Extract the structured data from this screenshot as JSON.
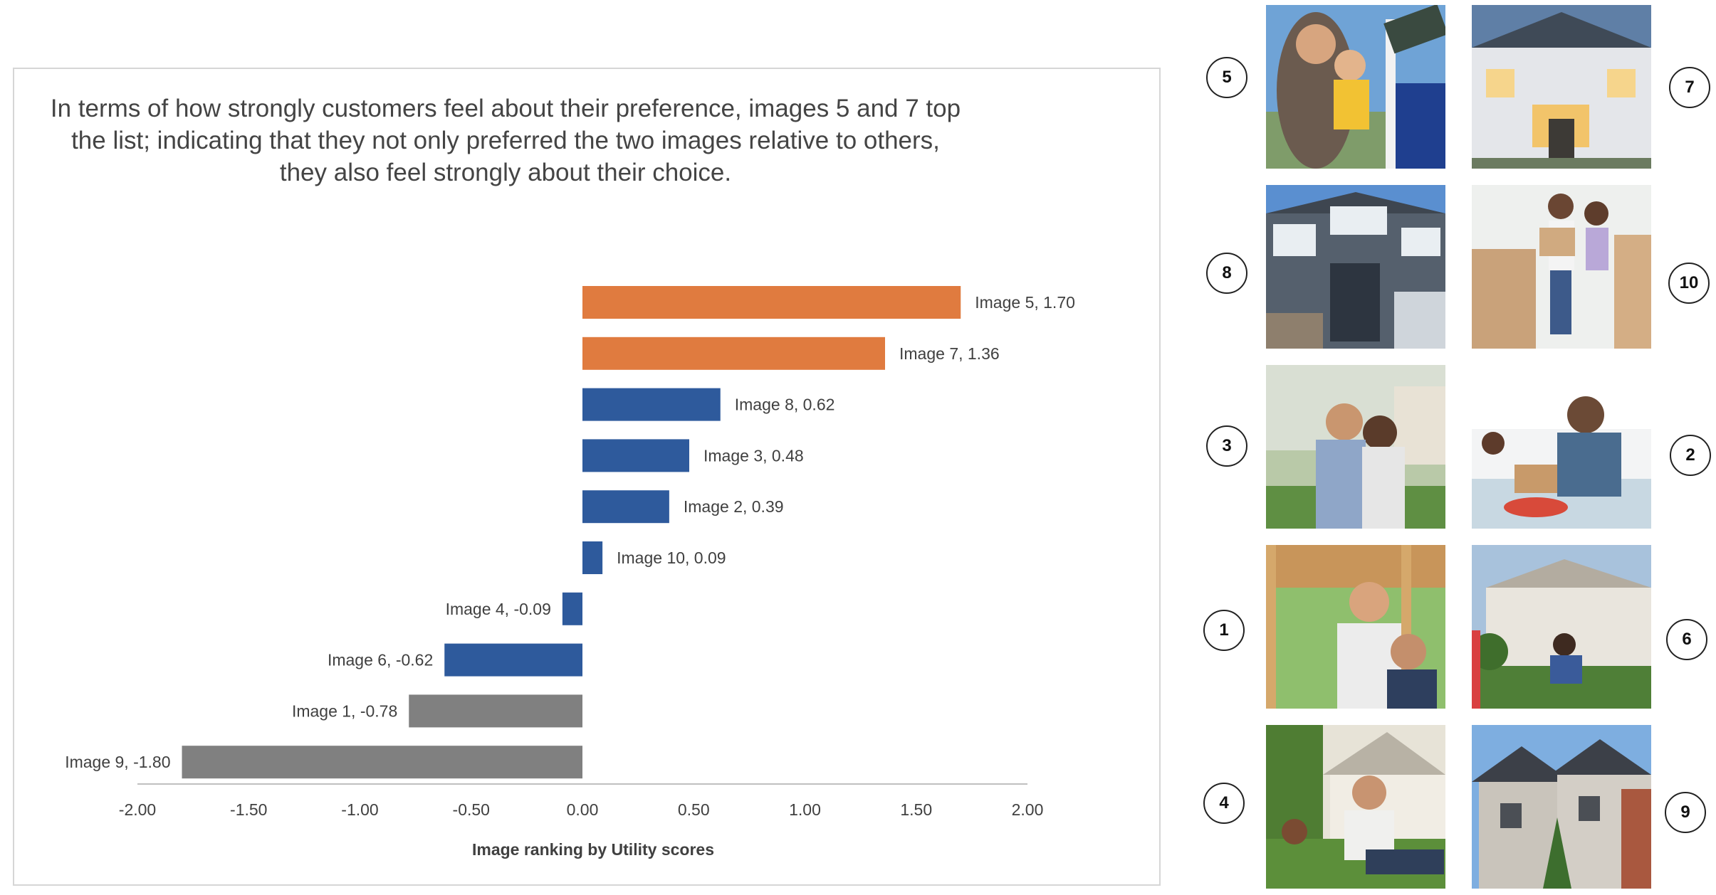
{
  "headline": [
    "In terms of how strongly customers feel about their preference, images 5 and 7 top",
    "the list; indicating that they not only preferred the two images relative to others,",
    "they also feel strongly about their choice."
  ],
  "colors": {
    "top": "#E07B3F",
    "positive": "#2E5A9C",
    "negative_blue": "#2E5A9C",
    "low": "#808080",
    "axis": "#BFBFBF"
  },
  "chart_data": {
    "type": "bar",
    "orientation": "horizontal",
    "title": "",
    "xlabel": "Image ranking by Utility scores",
    "ylabel": "",
    "xlim": [
      -2.0,
      2.0
    ],
    "xticks": [
      "-2.00",
      "-1.50",
      "-1.00",
      "-0.50",
      "0.00",
      "0.50",
      "1.00",
      "1.50",
      "2.00"
    ],
    "grid": false,
    "bars": [
      {
        "label": "Image 5, 1.70",
        "value": 1.7,
        "group": "top"
      },
      {
        "label": "Image 7, 1.36",
        "value": 1.36,
        "group": "top"
      },
      {
        "label": "Image 8, 0.62",
        "value": 0.62,
        "group": "positive"
      },
      {
        "label": "Image 3, 0.48",
        "value": 0.48,
        "group": "positive"
      },
      {
        "label": "Image 2, 0.39",
        "value": 0.39,
        "group": "positive"
      },
      {
        "label": "Image 10, 0.09",
        "value": 0.09,
        "group": "positive"
      },
      {
        "label": "Image 4, -0.09",
        "value": -0.09,
        "group": "negative_blue"
      },
      {
        "label": "Image 6, -0.62",
        "value": -0.62,
        "group": "negative_blue"
      },
      {
        "label": "Image 1, -0.78",
        "value": -0.78,
        "group": "low"
      },
      {
        "label": "Image 9, -1.80",
        "value": -1.8,
        "group": "low"
      }
    ]
  },
  "images": [
    {
      "number": "5",
      "scene": "family-sold-sign"
    },
    {
      "number": "7",
      "scene": "white-house-dusk"
    },
    {
      "number": "8",
      "scene": "gray-house"
    },
    {
      "number": "10",
      "scene": "family-moving-boxes"
    },
    {
      "number": "3",
      "scene": "couple-embrace"
    },
    {
      "number": "2",
      "scene": "kitchen-unpacking"
    },
    {
      "number": "1",
      "scene": "couple-porch"
    },
    {
      "number": "6",
      "scene": "family-yard"
    },
    {
      "number": "4",
      "scene": "family-lawn"
    },
    {
      "number": "9",
      "scene": "stone-houses"
    }
  ]
}
